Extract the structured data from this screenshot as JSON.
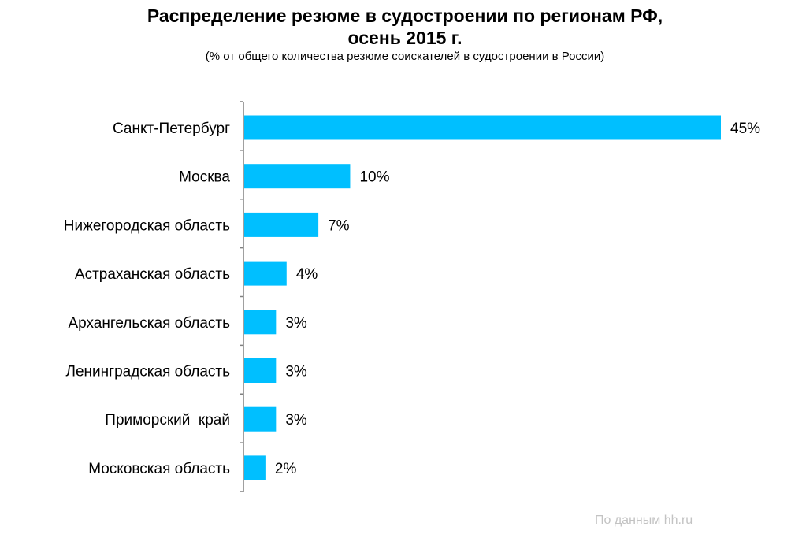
{
  "header": {
    "title_line_1": "Распределение резюме в судостроении  по регионам РФ,",
    "title_line_2": "осень 2015 г.",
    "subtitle": "(% от общего количества резюме соискателей в судостроении в России)"
  },
  "footer": {
    "source": "По данным hh.ru"
  },
  "chart_data": {
    "type": "bar",
    "orientation": "horizontal",
    "categories": [
      "Санкт-Петербург",
      "Москва",
      "Нижегородская область",
      "Астраханская область",
      "Архангельская область",
      "Ленинградская область",
      "Приморский  край",
      "Московская область"
    ],
    "values": [
      45,
      10,
      7,
      4,
      3,
      3,
      3,
      2
    ],
    "value_labels": [
      "45%",
      "10%",
      "7%",
      "4%",
      "3%",
      "3%",
      "3%",
      "2%"
    ],
    "xlim": [
      0,
      45
    ],
    "grid": false,
    "legend": "none",
    "colors": {
      "bar": "#00bfff",
      "axis": "#808080"
    }
  }
}
